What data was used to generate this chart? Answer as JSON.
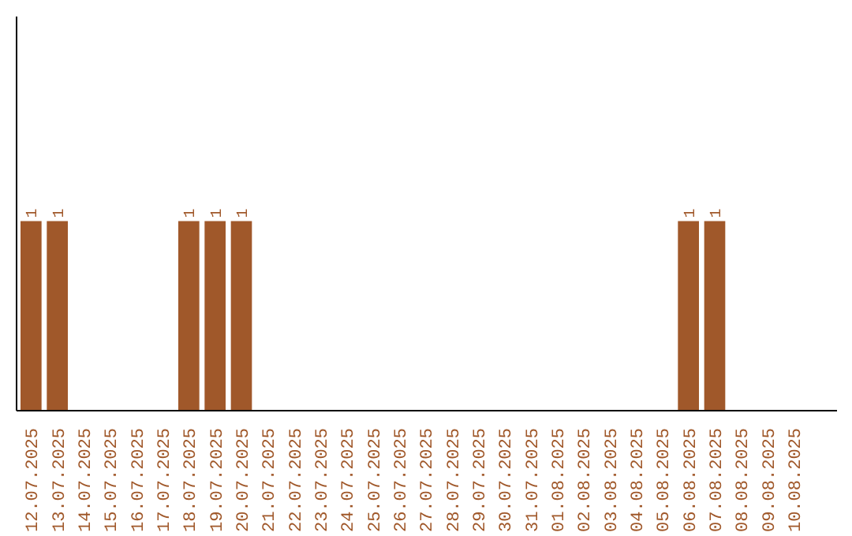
{
  "chart_data": {
    "type": "bar",
    "categories": [
      "12.07.2025",
      "13.07.2025",
      "14.07.2025",
      "15.07.2025",
      "16.07.2025",
      "17.07.2025",
      "18.07.2025",
      "19.07.2025",
      "20.07.2025",
      "21.07.2025",
      "22.07.2025",
      "23.07.2025",
      "24.07.2025",
      "25.07.2025",
      "26.07.2025",
      "27.07.2025",
      "28.07.2025",
      "29.07.2025",
      "30.07.2025",
      "31.07.2025",
      "01.08.2025",
      "02.08.2025",
      "03.08.2025",
      "04.08.2025",
      "05.08.2025",
      "06.08.2025",
      "07.08.2025",
      "08.08.2025",
      "09.08.2025",
      "10.08.2025"
    ],
    "values": [
      1,
      1,
      0,
      0,
      0,
      0,
      1,
      1,
      1,
      0,
      0,
      0,
      0,
      0,
      0,
      0,
      0,
      0,
      0,
      0,
      0,
      0,
      0,
      0,
      0,
      1,
      1,
      0,
      0,
      0
    ],
    "value_labels": [
      "1",
      "1",
      null,
      null,
      null,
      null,
      "1",
      "1",
      "1",
      null,
      null,
      null,
      null,
      null,
      null,
      null,
      null,
      null,
      null,
      null,
      null,
      null,
      null,
      null,
      null,
      "1",
      "1",
      null,
      null,
      null
    ],
    "color": "#a0582a",
    "ylim": [
      0,
      2.08
    ],
    "tick_labels": "x",
    "grid": false
  }
}
